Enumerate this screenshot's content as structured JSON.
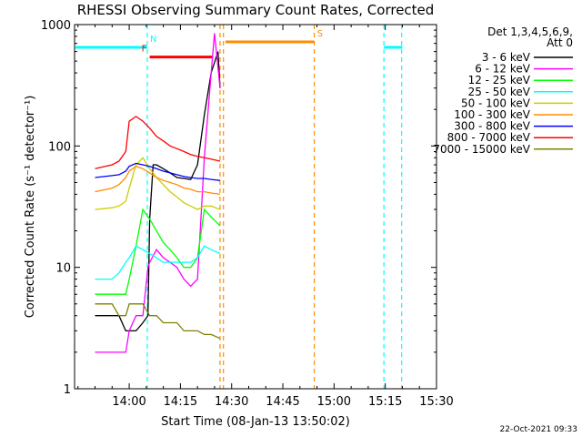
{
  "chart_data": {
    "type": "line",
    "title": "RHESSI Observing Summary Count Rates, Corrected",
    "xlabel": "Start Time (08-Jan-13 13:50:02)",
    "ylabel": "Corrected Count Rate (s⁻¹ detector⁻¹)",
    "y_scale": "log",
    "ylim": [
      1,
      1000
    ],
    "y_ticks": [
      {
        "v": 1,
        "label": "1"
      },
      {
        "v": 10,
        "label": "10"
      },
      {
        "v": 100,
        "label": "100"
      },
      {
        "v": 1000,
        "label": "1000"
      }
    ],
    "x_range_min": [
      -6,
      90
    ],
    "x_ticks": [
      {
        "m": 10,
        "label": "14:00"
      },
      {
        "m": 25,
        "label": "14:15"
      },
      {
        "m": 40,
        "label": "14:30"
      },
      {
        "m": 55,
        "label": "14:45"
      },
      {
        "m": 70,
        "label": "15:00"
      },
      {
        "m": 85,
        "label": "15:15"
      },
      {
        "m": 100,
        "label": "15:30"
      }
    ],
    "legend_header": [
      "Det 1,3,4,5,6,9,",
      "Att 0"
    ],
    "legend_position": "right",
    "series": [
      {
        "name": "3 - 6 keV",
        "color": "#000000",
        "x": [
          0,
          5,
          7,
          9,
          10,
          12,
          14,
          15.5,
          16,
          17,
          18,
          20,
          22,
          24,
          26,
          28,
          30,
          32,
          34,
          36,
          36.6
        ],
        "y": [
          4,
          4,
          4,
          3,
          3,
          3,
          3.5,
          4,
          25,
          70,
          70,
          65,
          60,
          55,
          54,
          53,
          70,
          180,
          400,
          600,
          300
        ]
      },
      {
        "name": "6 - 12 keV",
        "color": "#ff00ff",
        "x": [
          0,
          5,
          7,
          9,
          10,
          12,
          14,
          15.5,
          16,
          18,
          20,
          22,
          24,
          26,
          28,
          30,
          32,
          34,
          35,
          36.6
        ],
        "y": [
          2,
          2,
          2,
          2,
          3,
          4,
          4,
          10,
          11,
          14,
          12,
          11,
          10,
          8,
          7,
          8,
          80,
          400,
          850,
          300
        ]
      },
      {
        "name": "12 - 25 keV",
        "color": "#00ff00",
        "x": [
          0,
          5,
          7,
          9,
          10,
          12,
          14,
          16,
          18,
          20,
          22,
          24,
          26,
          28,
          30,
          32,
          34,
          36.6
        ],
        "y": [
          6,
          6,
          6,
          6,
          8,
          15,
          30,
          25,
          20,
          16,
          14,
          12,
          10,
          10,
          12,
          30,
          26,
          22
        ]
      },
      {
        "name": "25 - 50 keV",
        "color": "#00ffff",
        "x": [
          0,
          5,
          7,
          9,
          10,
          12,
          14,
          16,
          18,
          20,
          22,
          24,
          26,
          28,
          30,
          32,
          34,
          36.6
        ],
        "y": [
          8,
          8,
          9,
          11,
          12,
          15,
          14,
          13,
          12,
          11,
          11,
          11,
          11,
          11,
          12,
          15,
          14,
          13
        ]
      },
      {
        "name": "50 - 100 keV",
        "color": "#cccc00",
        "x": [
          0,
          5,
          7,
          9,
          10,
          12,
          14,
          16,
          18,
          20,
          22,
          24,
          26,
          28,
          30,
          32,
          34,
          36.6
        ],
        "y": [
          30,
          31,
          32,
          35,
          45,
          70,
          80,
          65,
          55,
          48,
          42,
          38,
          34,
          32,
          30,
          32,
          32,
          30
        ]
      },
      {
        "name": "100 - 300 keV",
        "color": "#ff8c00",
        "x": [
          0,
          5,
          7,
          9,
          10,
          12,
          14,
          16,
          18,
          20,
          22,
          24,
          26,
          28,
          30,
          32,
          34,
          36.6
        ],
        "y": [
          42,
          45,
          48,
          55,
          62,
          68,
          65,
          60,
          55,
          52,
          50,
          48,
          45,
          44,
          42,
          42,
          41,
          40
        ]
      },
      {
        "name": "300 - 800 keV",
        "color": "#0000ff",
        "x": [
          0,
          5,
          7,
          9,
          10,
          12,
          14,
          16,
          18,
          20,
          22,
          24,
          26,
          28,
          30,
          32,
          34,
          36.6
        ],
        "y": [
          55,
          57,
          58,
          62,
          68,
          72,
          70,
          68,
          65,
          62,
          60,
          58,
          56,
          55,
          54,
          54,
          53,
          52
        ]
      },
      {
        "name": "800 - 7000 keV",
        "color": "#ff0000",
        "x": [
          0,
          5,
          7,
          9,
          10,
          12,
          14,
          16,
          18,
          20,
          22,
          24,
          26,
          28,
          30,
          32,
          34,
          36.6
        ],
        "y": [
          65,
          70,
          75,
          90,
          160,
          175,
          160,
          140,
          120,
          110,
          100,
          95,
          90,
          85,
          82,
          80,
          78,
          75
        ]
      },
      {
        "name": "7000 - 15000 keV",
        "color": "#808000",
        "x": [
          0,
          5,
          7,
          9,
          10,
          12,
          14,
          16,
          18,
          20,
          22,
          24,
          26,
          28,
          30,
          32,
          34,
          36.6
        ],
        "y": [
          5,
          5,
          4,
          4,
          5,
          5,
          5,
          4,
          4,
          3.5,
          3.5,
          3.5,
          3,
          3,
          3,
          2.8,
          2.8,
          2.6
        ]
      }
    ],
    "annotations": [
      {
        "label": "N",
        "color": "#00ffff",
        "x": [
          -6,
          15.3
        ],
        "y": 650
      },
      {
        "label": "F",
        "color": "#ff0000",
        "x": [
          16,
          34.4
        ],
        "y": 540
      },
      {
        "label": "S",
        "color": "#ff8c00",
        "x": [
          38.2,
          64.2
        ],
        "y": 720
      },
      {
        "label": "",
        "color": "#00ffff",
        "x": [
          84.6,
          90
        ],
        "y": 650
      }
    ],
    "vertical_markers": [
      {
        "x": 15.3,
        "color": "#00ffff"
      },
      {
        "x": 36.6,
        "color": "#ff8c00"
      },
      {
        "x": 37.6,
        "color": "#ff8c00"
      },
      {
        "x": 64.2,
        "color": "#ff8c00"
      },
      {
        "x": 84.6,
        "color": "#00ffff"
      },
      {
        "x": 89.8,
        "color": "#00ffff"
      }
    ],
    "footer_date": "22-Oct-2021 09:33"
  }
}
